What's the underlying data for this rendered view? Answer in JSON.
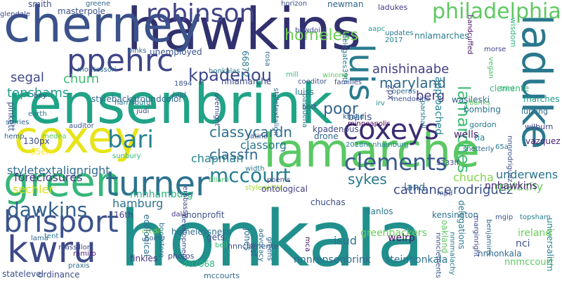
{
  "words": [
    {
      "text": "honkala",
      "color": "#21908d"
    },
    {
      "text": "rensenbrink",
      "color": "#20a386"
    },
    {
      "text": "hawkins",
      "color": "#31316f"
    },
    {
      "text": "lamarche",
      "color": "#5ac864"
    },
    {
      "text": "cherney",
      "color": "#3b528b"
    },
    {
      "text": "coxey",
      "color": "#e7e419"
    },
    {
      "text": "laduke",
      "color": "#2a788e"
    },
    {
      "text": "green",
      "color": "#35b779"
    },
    {
      "text": "kwru",
      "color": "#3e4a89"
    },
    {
      "text": "coxeys",
      "color": "#3d2c73"
    },
    {
      "text": "turner",
      "color": "#2c728e"
    },
    {
      "text": "brisport",
      "color": "#3b528b"
    },
    {
      "text": "ppehrc",
      "color": "#404688"
    },
    {
      "text": "robinson",
      "color": "#414487"
    },
    {
      "text": "luis",
      "color": "#2a7b8e"
    },
    {
      "text": "philadelphia",
      "color": "#5ec962"
    },
    {
      "text": "bari",
      "color": "#26828e"
    },
    {
      "text": "clements",
      "color": "#38588c"
    },
    {
      "text": "dawkins",
      "color": "#34618d"
    },
    {
      "text": "mccourt",
      "color": "#287d8e"
    },
    {
      "text": "kpadenou",
      "color": "#3e4989"
    },
    {
      "text": "homeless",
      "color": "#70cf57"
    },
    {
      "text": "lamarches",
      "color": "#3fbc73"
    },
    {
      "text": "maryland",
      "color": "#31688e"
    },
    {
      "text": "classycardn",
      "color": "#2d708e"
    },
    {
      "text": "chapman",
      "color": "#25858e"
    },
    {
      "text": "classfn",
      "color": "#31678e"
    },
    {
      "text": "sykes",
      "color": "#29798e"
    },
    {
      "text": "styletextalignright",
      "color": "#2f6c8e"
    },
    {
      "text": "rodriguez",
      "color": "#3a548c"
    },
    {
      "text": "classorg",
      "color": "#2a788e"
    },
    {
      "text": "poor",
      "color": "#33638d"
    },
    {
      "text": "anishinaabe",
      "color": "#433e85"
    },
    {
      "text": "berg",
      "color": "#453882"
    },
    {
      "text": "segal",
      "color": "#3f4788"
    },
    {
      "text": "topshams",
      "color": "#1f9a8a"
    },
    {
      "text": "churn",
      "color": "#3fbc73"
    },
    {
      "text": "sechler",
      "color": "#d8e219"
    },
    {
      "text": "hamburg",
      "color": "#2d718e"
    },
    {
      "text": "cathance",
      "color": "#3e4a89"
    },
    {
      "text": "chucha",
      "color": "#84d44b"
    },
    {
      "text": "foreclosures",
      "color": "#443983"
    },
    {
      "text": "greenbackers",
      "color": "#67cc5c"
    },
    {
      "text": "nnnhamburg",
      "color": "#29af7f"
    },
    {
      "text": "underwens",
      "color": "#2c728e"
    },
    {
      "text": "malachy",
      "color": "#65cb5e"
    },
    {
      "text": "nnhawkins",
      "color": "#482576"
    },
    {
      "text": "stylebackgroundcolor",
      "color": "#31688e"
    },
    {
      "text": "nnlamarches",
      "color": "#287c8e"
    },
    {
      "text": "masterpole",
      "color": "#3b528b"
    },
    {
      "text": "smith",
      "color": "#3b528b"
    },
    {
      "text": "pinks",
      "color": "#2f6b8e"
    },
    {
      "text": "unemployed",
      "color": "#3a548c"
    },
    {
      "text": "montessori",
      "color": "#31678e"
    },
    {
      "text": "horizon",
      "color": "#3b528b"
    },
    {
      "text": "newman",
      "color": "#31688e"
    },
    {
      "text": "bowdoin",
      "color": "#3e4c8a"
    },
    {
      "text": "ladukes",
      "color": "#443b84"
    },
    {
      "text": "aapc",
      "color": "#1fa287"
    },
    {
      "text": "updates",
      "color": "#2a768e"
    },
    {
      "text": "2017",
      "color": "#277f8e"
    },
    {
      "text": "vegan",
      "color": "#48c16e"
    },
    {
      "text": "morse",
      "color": "#404588"
    },
    {
      "text": "handcuffed",
      "color": "#471365"
    },
    {
      "text": "wisdom",
      "color": "#30b57c"
    },
    {
      "text": "approached",
      "color": "#26828e"
    },
    {
      "text": "clemente",
      "color": "#37b878"
    },
    {
      "text": "wasileski",
      "color": "#33638d"
    },
    {
      "text": "marches",
      "color": "#1e9b8a"
    },
    {
      "text": "bombing",
      "color": "#2c738e"
    },
    {
      "text": "lurking",
      "color": "#2e6f8e"
    },
    {
      "text": "wilburn",
      "color": "#3f4889"
    },
    {
      "text": "gordon",
      "color": "#2a788e"
    },
    {
      "text": "tia",
      "color": "#23898e"
    },
    {
      "text": "wells",
      "color": "#481f70"
    },
    {
      "text": "vazquez",
      "color": "#482475"
    },
    {
      "text": "kensington",
      "color": "#2c718e"
    },
    {
      "text": "nnhonkala",
      "color": "#306a8e"
    },
    {
      "text": "nnmccourt",
      "color": "#5ec962"
    },
    {
      "text": "universalism",
      "color": "#25848e"
    },
    {
      "text": "ireland",
      "color": "#6ccd5a"
    },
    {
      "text": "nci",
      "color": "#3b528b"
    },
    {
      "text": "topsham",
      "color": "#287d8e"
    },
    {
      "text": "steinhonkala",
      "color": "#2c728e"
    },
    {
      "text": "nnnrensenbrink",
      "color": "#31688e"
    },
    {
      "text": "nnnclemente",
      "color": "#39568c"
    },
    {
      "text": "mccourts",
      "color": "#31688e"
    },
    {
      "text": "407068",
      "color": "#2db27d"
    },
    {
      "text": "photos",
      "color": "#3e4989"
    },
    {
      "text": "finkles",
      "color": "#46337f"
    },
    {
      "text": "ordinance",
      "color": "#3e4a89"
    },
    {
      "text": "statelevel",
      "color": "#3b528b"
    },
    {
      "text": "praxis",
      "color": "#2e6e8e"
    },
    {
      "text": "ramiro",
      "color": "#481b6d"
    },
    {
      "text": "massillon",
      "color": "#3e4a89"
    },
    {
      "text": "lama",
      "color": "#31688e"
    },
    {
      "text": "tent",
      "color": "#2a788e"
    },
    {
      "text": "16th",
      "color": "#433d84"
    },
    {
      "text": "credit",
      "color": "#7ad151"
    },
    {
      "text": "homelessness",
      "color": "#2e6e8e"
    },
    {
      "text": "bomb",
      "color": "#355f8d"
    },
    {
      "text": "nonprofit",
      "color": "#3b528b"
    },
    {
      "text": "stylewidth",
      "color": "#a2da37"
    },
    {
      "text": "ontological",
      "color": "#433e85"
    },
    {
      "text": "chuchas",
      "color": "#3e4c8a"
    },
    {
      "text": "danlos",
      "color": "#2a788e"
    },
    {
      "text": "mpd",
      "color": "#3a548c"
    },
    {
      "text": "isud",
      "color": "#2c728e"
    },
    {
      "text": "welrp",
      "color": "#471063"
    },
    {
      "text": "wsf",
      "color": "#355f8d"
    },
    {
      "text": "jones",
      "color": "#31688e"
    },
    {
      "text": "gets",
      "color": "#3e4a89"
    },
    {
      "text": "bell",
      "color": "#35b779"
    },
    {
      "text": "greens",
      "color": "#31678e"
    },
    {
      "text": "mca",
      "color": "#471063"
    },
    {
      "text": "advocacy",
      "color": "#2d708e"
    },
    {
      "text": "development",
      "color": "#3b528b"
    },
    {
      "text": "ecological",
      "color": "#2e6e8e"
    },
    {
      "text": "bookstore",
      "color": "#2c728e"
    },
    {
      "text": "dalai",
      "color": "#46337f"
    },
    {
      "text": "poems",
      "color": "#3e4c8a"
    },
    {
      "text": "land",
      "color": "#2c738e"
    },
    {
      "text": "width",
      "color": "#2a788e"
    },
    {
      "text": "tillard",
      "color": "#4ac16d"
    },
    {
      "text": "2018nnnhamburg",
      "color": "#26828e"
    },
    {
      "text": "latino",
      "color": "#3b528b"
    },
    {
      "text": "drone",
      "color": "#31688e"
    },
    {
      "text": "kpadenous",
      "color": "#3e4a89"
    },
    {
      "text": "baris",
      "color": "#3b528b"
    },
    {
      "text": "khalid",
      "color": "#31688e"
    },
    {
      "text": "irv",
      "color": "#21908d"
    },
    {
      "text": "bott",
      "color": "#3b528b"
    },
    {
      "text": "pasadena",
      "color": "#2a788e"
    },
    {
      "text": "minneapolis",
      "color": "#440154"
    },
    {
      "text": "families",
      "color": "#3e4a89"
    },
    {
      "text": "coeditor",
      "color": "#3b528b"
    },
    {
      "text": "luiss",
      "color": "#2a788e"
    },
    {
      "text": "operas",
      "color": "#31688e"
    },
    {
      "text": "mendocino",
      "color": "#3b528b"
    },
    {
      "text": "parshall",
      "color": "#2a788e"
    },
    {
      "text": "nnlamarche",
      "color": "#3e4a89"
    },
    {
      "text": "honkalas",
      "color": "#2a788e"
    },
    {
      "text": "mill",
      "color": "#35b779"
    },
    {
      "text": "winona",
      "color": "#5ec962"
    },
    {
      "text": "rosa",
      "color": "#31688e"
    },
    {
      "text": "66872",
      "color": "#2a788e"
    },
    {
      "text": "1894",
      "color": "#3b528b"
    },
    {
      "text": "hud",
      "color": "#31688e"
    },
    {
      "text": "judi",
      "color": "#3e4a89"
    },
    {
      "text": "harrisburg",
      "color": "#2a788e"
    },
    {
      "text": "auditor",
      "color": "#3b528b"
    },
    {
      "text": "stories",
      "color": "#31688e"
    },
    {
      "text": "earth",
      "color": "#2a788e"
    },
    {
      "text": "bey",
      "color": "#3e4a89"
    },
    {
      "text": "medea",
      "color": "#5ec962"
    },
    {
      "text": "130px",
      "color": "#3e4a89"
    },
    {
      "text": "hemp",
      "color": "#31688e"
    },
    {
      "text": "05em",
      "color": "#fde725"
    },
    {
      "text": "pinkett",
      "color": "#3b528b"
    },
    {
      "text": "glendale",
      "color": "#3e4a89"
    },
    {
      "text": "greene",
      "color": "#31688e"
    },
    {
      "text": "sunbury",
      "color": "#35b779"
    },
    {
      "text": "nnnrodriguez",
      "color": "#3b528b"
    },
    {
      "text": "shetterly",
      "color": "#31688e"
    },
    {
      "text": "65a",
      "color": "#2a788e"
    },
    {
      "text": "3333ff",
      "color": "#3e4a89"
    },
    {
      "text": "overnight",
      "color": "#3e4a89"
    },
    {
      "text": "styletextalign",
      "color": "#31688e"
    },
    {
      "text": "2px",
      "color": "#3e4a89"
    },
    {
      "text": "delegates39th",
      "color": "#2a788e"
    },
    {
      "text": "delegations",
      "color": "#2a788e"
    },
    {
      "text": "nnnclements",
      "color": "#3b528b"
    },
    {
      "text": "oakland",
      "color": "#5ec962"
    },
    {
      "text": "marginright",
      "color": "#3e4a89"
    },
    {
      "text": "benjamins",
      "color": "#31688e"
    },
    {
      "text": "mgip",
      "color": "#3b528b"
    },
    {
      "text": "nnnmalachy",
      "color": "#2a788e"
    },
    {
      "text": "embassy",
      "color": "#3e4a89"
    },
    {
      "text": "trini",
      "color": "#35b779"
    },
    {
      "text": "banks",
      "color": "#5ec962"
    }
  ]
}
